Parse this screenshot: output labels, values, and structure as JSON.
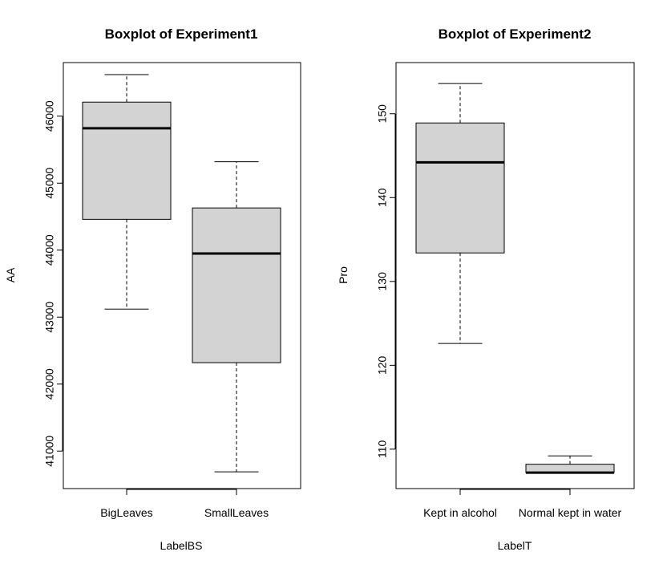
{
  "chart_data": [
    {
      "type": "boxplot",
      "title": "Boxplot of Experiment1",
      "xlabel": "LabelBS",
      "ylabel": "AA",
      "categories": [
        "BigLeaves",
        "SmallLeaves"
      ],
      "ylim": [
        40440,
        46800
      ],
      "yticks": [
        41000,
        42000,
        43000,
        44000,
        45000,
        46000
      ],
      "ytick_labels": [
        "41000",
        "42000",
        "43000",
        "44000",
        "45000",
        "46000"
      ],
      "boxes": [
        {
          "min": 43120,
          "q1": 44460,
          "median": 45820,
          "q3": 46210,
          "max": 46620
        },
        {
          "min": 40690,
          "q1": 42320,
          "median": 43950,
          "q3": 44630,
          "max": 45320
        }
      ],
      "box_color": "#d3d3d3",
      "grid": false,
      "legend": "none"
    },
    {
      "type": "boxplot",
      "title": "Boxplot of Experiment2",
      "xlabel": "LabelT",
      "ylabel": "Pro",
      "categories": [
        "Kept in alcohol",
        "Normal kept in water"
      ],
      "ylim": [
        105.3,
        156.1
      ],
      "yticks": [
        110,
        120,
        130,
        140,
        150
      ],
      "ytick_labels": [
        "110",
        "120",
        "130",
        "140",
        "150"
      ],
      "boxes": [
        {
          "min": 122.6,
          "q1": 133.4,
          "median": 144.2,
          "q3": 148.9,
          "max": 153.6
        },
        {
          "min": 107.2,
          "q1": 107.2,
          "median": 107.2,
          "q3": 108.2,
          "max": 109.2
        }
      ],
      "box_color": "#d3d3d3",
      "grid": false,
      "legend": "none"
    }
  ]
}
